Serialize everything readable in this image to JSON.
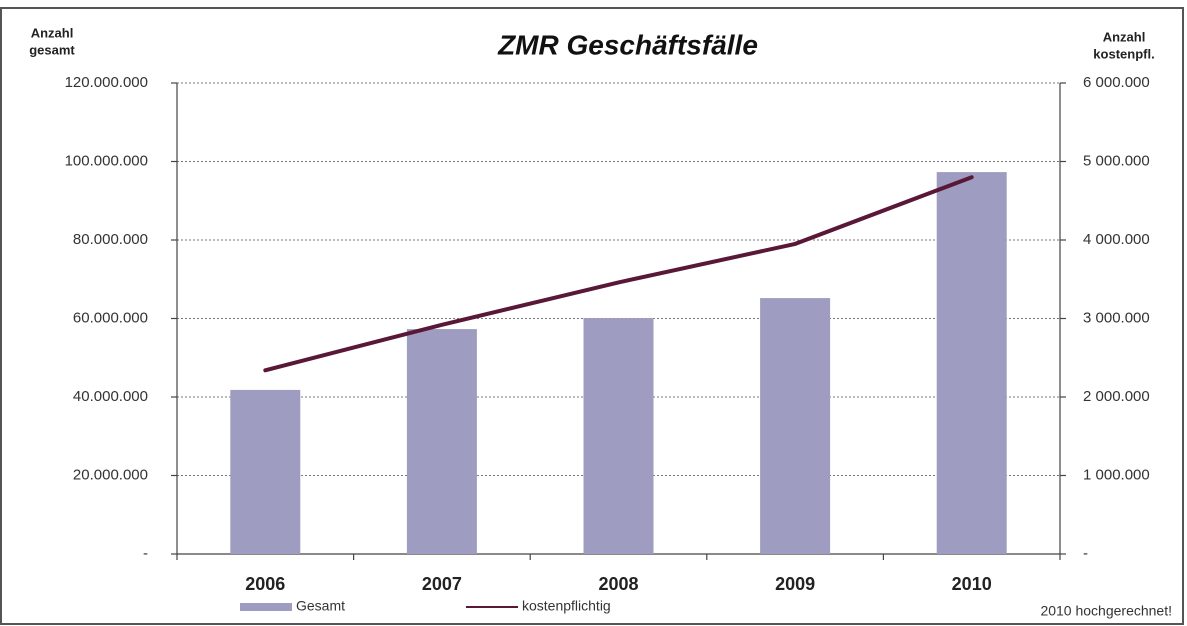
{
  "chart_data": {
    "type": "bar_line",
    "title": "ZMR Geschäftsfälle",
    "ylabel": [
      "Anzahl",
      "gesamt"
    ],
    "y2label": [
      "Anzahl",
      "kostenpfl."
    ],
    "categories": [
      "2006",
      "2007",
      "2008",
      "2009",
      "2010"
    ],
    "series": [
      {
        "name": "Gesamt",
        "type": "bar",
        "color": "#9e9cc0",
        "axis": "y",
        "values": [
          41800000,
          57300000,
          60100000,
          65200000,
          97300000
        ]
      },
      {
        "name": "kostenpflichtig",
        "type": "line",
        "color": "#5a1838",
        "axis": "y2",
        "values": [
          2340000,
          2920000,
          3460000,
          3950000,
          4800000
        ]
      }
    ],
    "ylim": [
      0,
      120000000
    ],
    "yticks": [
      {
        "value": 0,
        "label": "-"
      },
      {
        "value": 20000000,
        "label": "20.000.000"
      },
      {
        "value": 40000000,
        "label": "40.000.000"
      },
      {
        "value": 60000000,
        "label": "60.000.000"
      },
      {
        "value": 80000000,
        "label": "80.000.000"
      },
      {
        "value": 100000000,
        "label": "100.000.000"
      },
      {
        "value": 120000000,
        "label": "120.000.000"
      }
    ],
    "y2lim": [
      0,
      6000000
    ],
    "y2ticks": [
      {
        "value": 0,
        "label": "-"
      },
      {
        "value": 1000000,
        "label": "1 000.000"
      },
      {
        "value": 2000000,
        "label": "2 000.000"
      },
      {
        "value": 3000000,
        "label": "3 000.000"
      },
      {
        "value": 4000000,
        "label": "4 000.000"
      },
      {
        "value": 5000000,
        "label": "5 000.000"
      },
      {
        "value": 6000000,
        "label": "6 000.000"
      }
    ],
    "grid": true,
    "annotation": "2010 hochgerechnet!"
  }
}
